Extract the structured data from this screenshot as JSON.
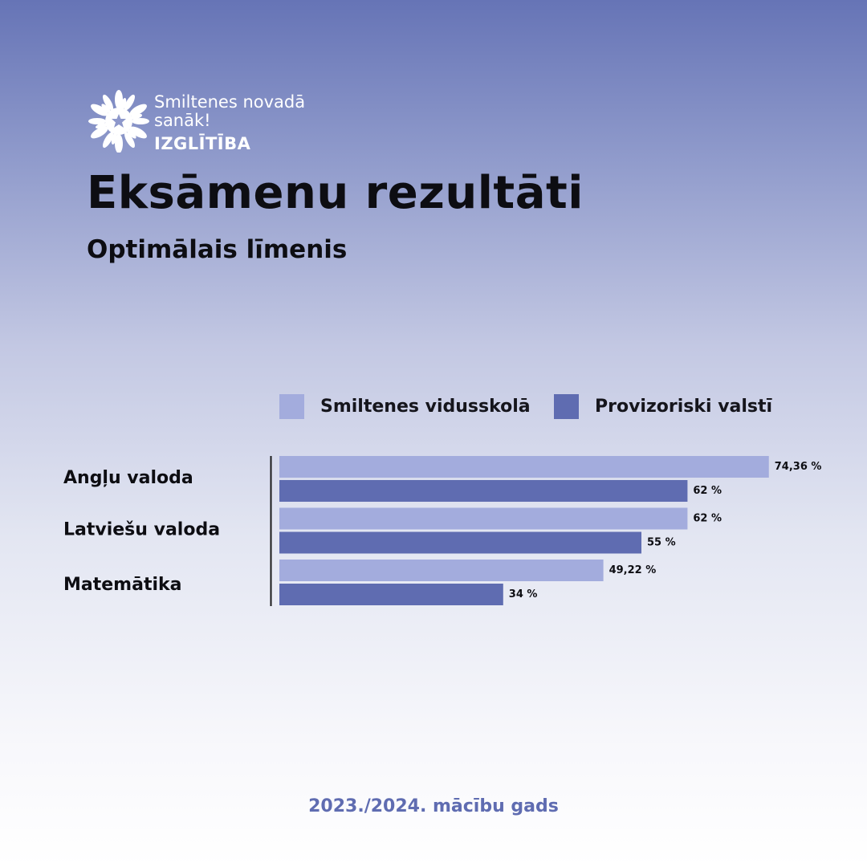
{
  "logo": {
    "line1": "Smiltenes novadā",
    "line2": "sanāk!",
    "line3": "IZGLĪTĪBA"
  },
  "header": {
    "title": "Eksāmenu rezultāti",
    "subtitle": "Optimālais līmenis"
  },
  "colors": {
    "school": "#a3acdd",
    "country": "#5f6cb1",
    "text": "#0d0d12",
    "axis": "#1a1a1a"
  },
  "chart_data": {
    "type": "bar",
    "orientation": "horizontal",
    "categories": [
      "Angļu valoda",
      "Latviešu valoda",
      "Matemātika"
    ],
    "series": [
      {
        "name": "Smiltenes vidusskolā",
        "values": [
          74.36,
          62,
          49.22
        ],
        "labels": [
          "74,36 %",
          "62 %",
          "49,22 %"
        ],
        "color": "#a3acdd"
      },
      {
        "name": "Provizoriski valstī",
        "values": [
          62,
          55,
          34
        ],
        "labels": [
          "62 %",
          "55 %",
          "34 %"
        ],
        "color": "#5f6cb1"
      }
    ],
    "xlim": [
      0,
      100
    ],
    "grid": false,
    "legend": "top"
  },
  "footer": {
    "text": "2023./2024. mācību gads"
  }
}
